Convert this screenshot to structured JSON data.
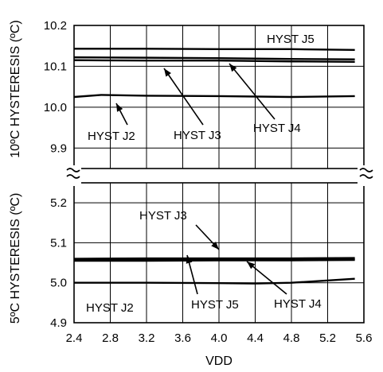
{
  "chart_data": {
    "type": "line",
    "x_label": "VDD",
    "x_ticks": [
      "2.4",
      "2.8",
      "3.2",
      "3.6",
      "4.0",
      "4.4",
      "4.8",
      "5.2",
      "5.6"
    ],
    "x_range": [
      2.4,
      5.6
    ],
    "panels": [
      {
        "id": "upper",
        "y_label": "10ºC HYSTERESIS (ºC)",
        "y_ticks": [
          "9.9",
          "10.0",
          "10.1",
          "10.2"
        ],
        "y_range": [
          9.85,
          10.2
        ],
        "series": [
          {
            "name": "HYST J5",
            "x": [
              2.4,
              3.2,
              4.0,
              4.8,
              5.5
            ],
            "y": [
              10.143,
              10.143,
              10.142,
              10.142,
              10.14
            ]
          },
          {
            "name": "HYST J4",
            "x": [
              2.4,
              3.2,
              4.0,
              4.8,
              5.5
            ],
            "y": [
              10.122,
              10.121,
              10.12,
              10.118,
              10.117
            ]
          },
          {
            "name": "HYST J3",
            "x": [
              2.4,
              3.2,
              4.0,
              4.8,
              5.5
            ],
            "y": [
              10.115,
              10.114,
              10.114,
              10.112,
              10.111
            ]
          },
          {
            "name": "HYST J2",
            "x": [
              2.4,
              2.7,
              3.2,
              4.0,
              4.8,
              5.5
            ],
            "y": [
              10.025,
              10.03,
              10.028,
              10.027,
              10.025,
              10.027
            ]
          }
        ],
        "annotations": [
          {
            "text": "HYST J5",
            "series": "HYST J5"
          },
          {
            "text": "HYST J2",
            "series": "HYST J2"
          },
          {
            "text": "HYST J3",
            "series": "HYST J3"
          },
          {
            "text": "HYST J4",
            "series": "HYST J4"
          }
        ]
      },
      {
        "id": "lower",
        "y_label": "5ºC HYSTERESIS (ºC)",
        "y_ticks": [
          "4.9",
          "5.0",
          "5.1",
          "5.2"
        ],
        "y_range": [
          4.9,
          5.25
        ],
        "series": [
          {
            "name": "HYST J3",
            "x": [
              2.4,
              3.2,
              4.0,
              4.8,
              5.5
            ],
            "y": [
              5.06,
              5.061,
              5.061,
              5.061,
              5.062
            ]
          },
          {
            "name": "HYST J5",
            "x": [
              2.4,
              3.2,
              4.0,
              4.8,
              5.5
            ],
            "y": [
              5.057,
              5.057,
              5.058,
              5.058,
              5.059
            ]
          },
          {
            "name": "HYST J4",
            "x": [
              2.4,
              3.2,
              4.0,
              4.8,
              5.5
            ],
            "y": [
              5.055,
              5.055,
              5.056,
              5.056,
              5.057
            ]
          },
          {
            "name": "HYST J2",
            "x": [
              2.4,
              3.2,
              4.0,
              4.4,
              4.8,
              5.5
            ],
            "y": [
              5.0,
              5.0,
              4.999,
              4.998,
              5.0,
              5.01
            ]
          }
        ],
        "annotations": [
          {
            "text": "HYST J3",
            "series": "HYST J3"
          },
          {
            "text": "HYST J2",
            "series": "HYST J2"
          },
          {
            "text": "HYST J5",
            "series": "HYST J5"
          },
          {
            "text": "HYST J4",
            "series": "HYST J4"
          }
        ]
      }
    ],
    "grid": true,
    "legend": "none"
  }
}
